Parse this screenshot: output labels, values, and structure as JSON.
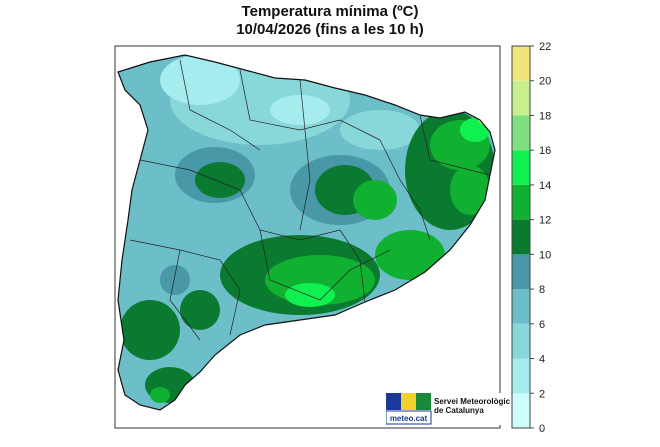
{
  "title": "Temperatura mínima (ºC)",
  "subtitle": "10/04/2026 (fins a les 10 h)",
  "legend": {
    "ticks": [
      "0",
      "2",
      "4",
      "6",
      "8",
      "10",
      "12",
      "14",
      "16",
      "18",
      "20",
      "22"
    ],
    "bins": [
      {
        "range": [
          0,
          2
        ],
        "color": "#ccfcfc"
      },
      {
        "range": [
          2,
          4
        ],
        "color": "#a6ecee"
      },
      {
        "range": [
          4,
          6
        ],
        "color": "#88d8da"
      },
      {
        "range": [
          6,
          8
        ],
        "color": "#6cbec8"
      },
      {
        "range": [
          8,
          10
        ],
        "color": "#4898a8"
      },
      {
        "range": [
          10,
          12
        ],
        "color": "#0a7a30"
      },
      {
        "range": [
          12,
          14
        ],
        "color": "#10b030"
      },
      {
        "range": [
          14,
          16
        ],
        "color": "#10f050"
      },
      {
        "range": [
          16,
          18
        ],
        "color": "#80e080"
      },
      {
        "range": [
          18,
          20
        ],
        "color": "#c8f08c"
      },
      {
        "range": [
          20,
          22
        ],
        "color": "#f0e47a"
      }
    ]
  },
  "logo": {
    "name": "meteo.cat",
    "line1": "Servei Meteorològic",
    "line2": "de Catalunya"
  }
}
